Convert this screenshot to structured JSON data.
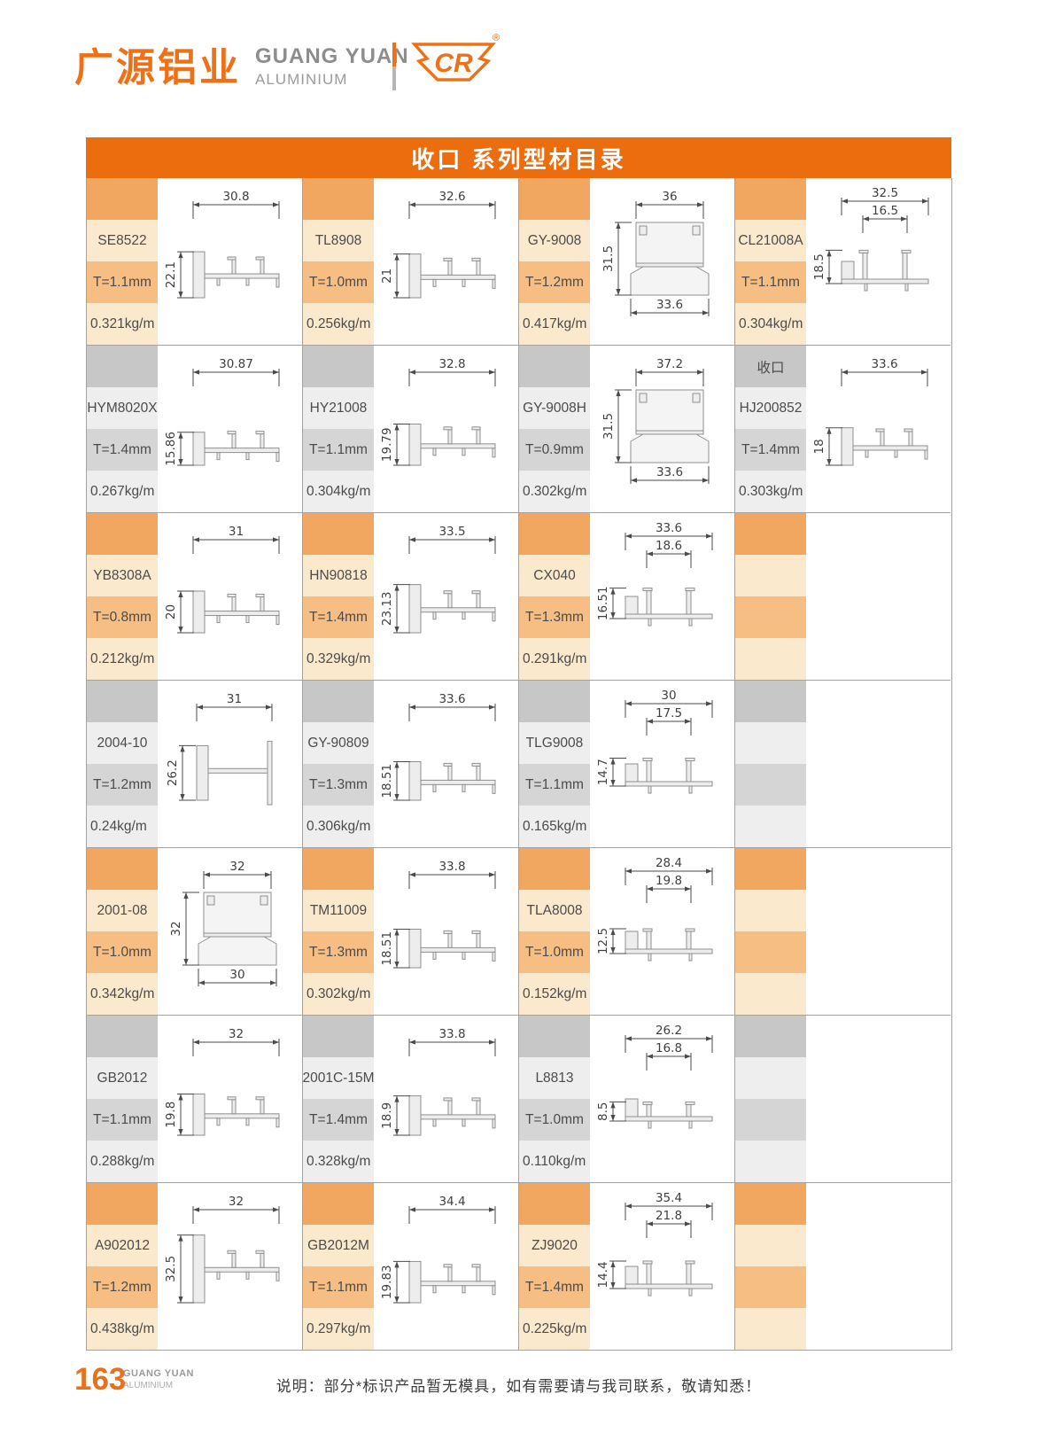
{
  "header": {
    "brand_cn": "广源铝业",
    "brand_en": "GUANG YUAN",
    "brand_sub": "ALUMINIUM",
    "emblem_text": "CR",
    "registered_mark": "®"
  },
  "title": "收口 系列型材目录",
  "grid": {
    "columns": 4,
    "row_themes": [
      "orange",
      "gray",
      "orange",
      "gray",
      "orange",
      "gray",
      "orange"
    ],
    "products": [
      {
        "code": "SE8522",
        "thickness": "T=1.1mm",
        "weight": "0.321kg/m",
        "tag": "",
        "drawing": {
          "type": "rail",
          "dim_top": "30.8",
          "dim_left": "22.1"
        }
      },
      {
        "code": "TL8908",
        "thickness": "T=1.0mm",
        "weight": "0.256kg/m",
        "tag": "",
        "drawing": {
          "type": "rail",
          "dim_top": "32.6",
          "dim_left": "21"
        }
      },
      {
        "code": "GY-9008",
        "thickness": "T=1.2mm",
        "weight": "0.417kg/m",
        "tag": "",
        "drawing": {
          "type": "box",
          "dim_top": "36",
          "dim_left": "31.5",
          "dim_bottom": "33.6"
        }
      },
      {
        "code": "CL21008A",
        "thickness": "T=1.1mm",
        "weight": "0.304kg/m",
        "tag": "",
        "drawing": {
          "type": "channel",
          "dim_top": "32.5",
          "dim_inner": "16.5",
          "dim_left": "18.5"
        }
      },
      {
        "code": "HYM8020X",
        "thickness": "T=1.4mm",
        "weight": "0.267kg/m",
        "tag": "",
        "drawing": {
          "type": "rail",
          "dim_top": "30.87",
          "dim_left": "15.86"
        }
      },
      {
        "code": "HY21008",
        "thickness": "T=1.1mm",
        "weight": "0.304kg/m",
        "tag": "",
        "drawing": {
          "type": "rail",
          "dim_top": "32.8",
          "dim_left": "19.79"
        }
      },
      {
        "code": "GY-9008H",
        "thickness": "T=0.9mm",
        "weight": "0.302kg/m",
        "tag": "",
        "drawing": {
          "type": "box",
          "dim_top": "37.2",
          "dim_left": "31.5",
          "dim_bottom": "33.6"
        }
      },
      {
        "code": "HJ200852",
        "thickness": "T=1.4mm",
        "weight": "0.303kg/m",
        "tag": "收口",
        "drawing": {
          "type": "rail",
          "dim_top": "33.6",
          "dim_left": "18"
        }
      },
      {
        "code": "YB8308A",
        "thickness": "T=0.8mm",
        "weight": "0.212kg/m",
        "tag": "",
        "drawing": {
          "type": "rail",
          "dim_top": "31",
          "dim_left": "20"
        }
      },
      {
        "code": "HN90818",
        "thickness": "T=1.4mm",
        "weight": "0.329kg/m",
        "tag": "",
        "drawing": {
          "type": "rail",
          "dim_top": "33.5",
          "dim_left": "23.13"
        }
      },
      {
        "code": "CX040",
        "thickness": "T=1.3mm",
        "weight": "0.291kg/m",
        "tag": "",
        "drawing": {
          "type": "channel",
          "dim_top": "33.6",
          "dim_inner": "18.6",
          "dim_left": "16.51"
        }
      },
      null,
      {
        "code": "2004-10",
        "thickness": "T=1.2mm",
        "weight": "0.24kg/m",
        "tag": "",
        "drawing": {
          "type": "hbeam",
          "dim_top": "31",
          "dim_left": "26.2"
        }
      },
      {
        "code": "GY-90809",
        "thickness": "T=1.3mm",
        "weight": "0.306kg/m",
        "tag": "",
        "drawing": {
          "type": "rail",
          "dim_top": "33.6",
          "dim_left": "18.51"
        }
      },
      {
        "code": "TLG9008",
        "thickness": "T=1.1mm",
        "weight": "0.165kg/m",
        "tag": "",
        "drawing": {
          "type": "channel",
          "dim_top": "30",
          "dim_inner": "17.5",
          "dim_left": "14.7"
        }
      },
      null,
      {
        "code": "2001-08",
        "thickness": "T=1.0mm",
        "weight": "0.342kg/m",
        "tag": "",
        "drawing": {
          "type": "box",
          "dim_top": "32",
          "dim_left": "32",
          "dim_bottom": "30"
        }
      },
      {
        "code": "TM11009",
        "thickness": "T=1.3mm",
        "weight": "0.302kg/m",
        "tag": "",
        "drawing": {
          "type": "rail",
          "dim_top": "33.8",
          "dim_left": "18.51"
        }
      },
      {
        "code": "TLA8008",
        "thickness": "T=1.0mm",
        "weight": "0.152kg/m",
        "tag": "",
        "drawing": {
          "type": "channel",
          "dim_top": "28.4",
          "dim_inner": "19.8",
          "dim_left": "12.5"
        }
      },
      null,
      {
        "code": "GB2012",
        "thickness": "T=1.1mm",
        "weight": "0.288kg/m",
        "tag": "",
        "drawing": {
          "type": "rail",
          "dim_top": "32",
          "dim_left": "19.8"
        }
      },
      {
        "code": "2001C-15M",
        "thickness": "T=1.4mm",
        "weight": "0.328kg/m",
        "tag": "",
        "drawing": {
          "type": "rail",
          "dim_top": "33.8",
          "dim_left": "18.9"
        }
      },
      {
        "code": "L8813",
        "thickness": "T=1.0mm",
        "weight": "0.110kg/m",
        "tag": "",
        "drawing": {
          "type": "channel",
          "dim_top": "26.2",
          "dim_inner": "16.8",
          "dim_left": "8.5"
        }
      },
      null,
      {
        "code": "A902012",
        "thickness": "T=1.2mm",
        "weight": "0.438kg/m",
        "tag": "",
        "drawing": {
          "type": "rail",
          "dim_top": "32",
          "dim_left": "32.5"
        }
      },
      {
        "code": "GB2012M",
        "thickness": "T=1.1mm",
        "weight": "0.297kg/m",
        "tag": "",
        "drawing": {
          "type": "rail",
          "dim_top": "34.4",
          "dim_left": "19.83"
        }
      },
      {
        "code": "ZJ9020",
        "thickness": "T=1.4mm",
        "weight": "0.225kg/m",
        "tag": "",
        "drawing": {
          "type": "channel",
          "dim_top": "35.4",
          "dim_inner": "21.8",
          "dim_left": "14.4"
        }
      },
      null
    ]
  },
  "footer": {
    "page_number": "163",
    "brand_en": "GUANG YUAN",
    "brand_sub": "ALUMINIUM",
    "note": "说明：部分*标识产品暂无模具，如有需要请与我司联系，敬请知悉！"
  },
  "colors": {
    "accent_orange": "#EC6D0D",
    "logo_orange": "#EE7118",
    "band_orange_dark": "#F2A761",
    "band_orange_mid": "#F6BE83",
    "band_orange_light": "#FBE9CE",
    "band_gray_dark": "#C7C7C7",
    "band_gray_mid": "#D5D5D5",
    "band_gray_light": "#EEEEEE",
    "grid_line": "#A2A2A2"
  }
}
